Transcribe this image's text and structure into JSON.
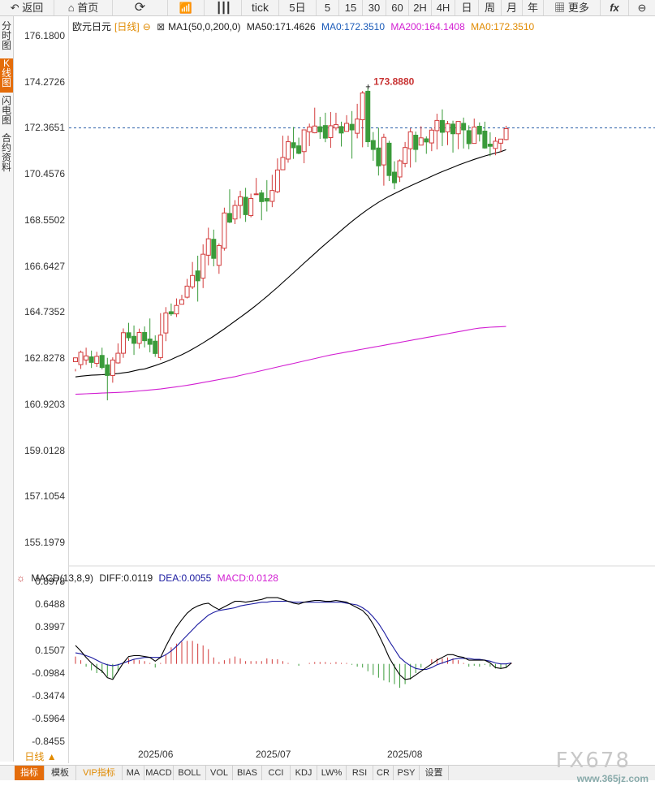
{
  "toolbar": {
    "back": "返回",
    "home": "首页",
    "tick": "tick",
    "periods": [
      "5日",
      "5",
      "15",
      "30",
      "60",
      "2H",
      "4H",
      "日",
      "周",
      "月",
      "年"
    ],
    "more": "更多"
  },
  "left_tabs": [
    {
      "label": "分时图",
      "active": false
    },
    {
      "label": "K线图",
      "active": true
    },
    {
      "label": "闪电图",
      "active": false
    },
    {
      "label": "合约资料",
      "active": false
    }
  ],
  "main_legend": {
    "symbol": "欧元日元",
    "period": "[日线]",
    "ma1": "MA1(50,0,200,0)",
    "ma50": "MA50:171.4626",
    "ma0": "MA0:172.3510",
    "ma200": "MA200:164.1408",
    "ma0b": "MA0:172.3510"
  },
  "current_price": "172.3651",
  "high_label": "173.8880",
  "y_labels_main": [
    "176.1800",
    "174.2726",
    "172.3651",
    "170.4576",
    "168.5502",
    "166.6427",
    "164.7352",
    "162.8278",
    "160.9203",
    "159.0128",
    "157.1054",
    "155.1979"
  ],
  "macd_legend": {
    "title": "MACD(13,8,9)",
    "diff": "DIFF:0.0119",
    "dea": "DEA:0.0055",
    "macd": "MACD:0.0128"
  },
  "y_labels_macd": [
    "0.8978",
    "0.6488",
    "0.3997",
    "0.1507",
    "-0.0984",
    "-0.3474",
    "-0.5964",
    "-0.8455"
  ],
  "x_labels": [
    "2025/06",
    "2025/07",
    "2025/08"
  ],
  "period_button": "日线 ▲",
  "bottom_tabs": [
    "指标",
    "模板",
    "VIP指标",
    "MA",
    "MACD",
    "BOLL",
    "VOL",
    "BIAS",
    "CCI",
    "KDJ",
    "LW%",
    "RSI",
    "CR",
    "PSY",
    "设置"
  ],
  "watermark": "FX678",
  "watermark_site": "www.365jz.com",
  "colors": {
    "up": "#d23a3a",
    "down": "#3a9b3a",
    "ma50": "#000000",
    "ma200": "#d21ed2",
    "dea": "#1a1aa0",
    "diff": "#000000",
    "current": "#2a5fa8"
  },
  "chart_data": {
    "type": "candlestick",
    "title": "欧元日元 [日线]",
    "ylim": [
      155.1979,
      176.18
    ],
    "x_ticks": [
      "2025/06",
      "2025/07",
      "2025/08"
    ],
    "candles": [
      [
        162.68,
        162.84,
        162.38,
        162.28
      ],
      [
        162.56,
        163.07,
        163.14,
        162.38
      ],
      [
        162.75,
        162.92,
        163.26,
        162.55
      ],
      [
        162.88,
        162.65,
        163.14,
        162.42
      ],
      [
        162.61,
        162.9,
        163.09,
        162.46
      ],
      [
        162.94,
        162.44,
        163.26,
        162.36
      ],
      [
        162.55,
        162.11,
        162.84,
        161.08
      ],
      [
        162.11,
        162.75,
        162.86,
        161.81
      ],
      [
        162.63,
        163.03,
        163.44,
        162.6
      ],
      [
        163.03,
        163.88,
        164.06,
        162.84
      ],
      [
        163.88,
        163.67,
        164.29,
        163.54
      ],
      [
        163.73,
        163.44,
        164.18,
        162.96
      ],
      [
        163.44,
        163.89,
        164.05,
        163.22
      ],
      [
        163.89,
        163.55,
        164.14,
        163.27
      ],
      [
        163.62,
        163.4,
        164.47,
        163.07
      ],
      [
        163.53,
        163.02,
        163.77,
        162.88
      ],
      [
        162.85,
        163.78,
        164.69,
        162.75
      ],
      [
        163.87,
        164.7,
        164.94,
        163.53
      ],
      [
        164.75,
        164.66,
        165.09,
        164.58
      ],
      [
        164.66,
        165.01,
        165.3,
        164.53
      ],
      [
        165.06,
        165.25,
        165.45,
        165.05
      ],
      [
        165.35,
        165.81,
        166.11,
        165.3
      ],
      [
        165.78,
        166.25,
        166.81,
        165.69
      ],
      [
        166.44,
        166.03,
        167.07,
        165.17
      ],
      [
        166.14,
        167.13,
        167.54,
        165.73
      ],
      [
        167.09,
        167.77,
        168.23,
        166.67
      ],
      [
        167.75,
        166.96,
        168.15,
        166.63
      ],
      [
        166.67,
        167.49,
        167.58,
        166.32
      ],
      [
        167.38,
        168.84,
        169.06,
        167.28
      ],
      [
        168.82,
        168.46,
        169.82,
        168.42
      ],
      [
        168.59,
        169.15,
        169.37,
        168.38
      ],
      [
        169.15,
        169.51,
        169.76,
        168.61
      ],
      [
        169.49,
        168.77,
        169.88,
        168.47
      ],
      [
        168.73,
        169.44,
        169.64,
        168.66
      ],
      [
        169.6,
        169.63,
        170.29,
        169.61
      ],
      [
        169.67,
        169.31,
        169.79,
        168.54
      ],
      [
        169.44,
        169.33,
        170.2,
        168.9
      ],
      [
        169.32,
        169.77,
        170.42,
        169.08
      ],
      [
        169.72,
        170.62,
        171.1,
        169.66
      ],
      [
        170.63,
        171.14,
        172.04,
        170.66
      ],
      [
        171.07,
        171.79,
        172.04,
        170.92
      ],
      [
        171.75,
        171.54,
        172.4,
        171.08
      ],
      [
        171.62,
        171.31,
        171.96,
        171.27
      ],
      [
        171.38,
        172.28,
        172.29,
        170.9
      ],
      [
        172.2,
        172.4,
        172.54,
        171.61
      ],
      [
        172.16,
        172.44,
        173.2,
        172.14
      ],
      [
        172.41,
        172.2,
        172.82,
        171.91
      ],
      [
        172.46,
        171.94,
        172.99,
        171.77
      ],
      [
        171.96,
        172.45,
        173.02,
        171.54
      ],
      [
        172.36,
        172.5,
        172.99,
        172.26
      ],
      [
        172.42,
        172.15,
        172.62,
        171.59
      ],
      [
        172.22,
        172.55,
        172.89,
        172.31
      ],
      [
        172.51,
        172.28,
        173.06,
        171.09
      ],
      [
        172.14,
        172.73,
        173.36,
        171.93
      ],
      [
        172.7,
        173.81,
        173.89,
        171.56
      ],
      [
        173.88,
        171.79,
        174.04,
        171.57
      ],
      [
        171.84,
        171.47,
        172.19,
        171.0
      ],
      [
        171.53,
        170.79,
        172.37,
        170.39
      ],
      [
        170.83,
        171.97,
        172.12,
        169.97
      ],
      [
        171.73,
        170.39,
        171.83,
        170.16
      ],
      [
        170.53,
        170.09,
        170.98,
        169.82
      ],
      [
        170.33,
        171.0,
        171.06,
        170.12
      ],
      [
        170.89,
        171.55,
        171.78,
        170.73
      ],
      [
        171.5,
        172.2,
        172.35,
        170.72
      ],
      [
        172.06,
        171.47,
        172.21,
        170.94
      ],
      [
        171.65,
        171.95,
        172.43,
        171.65
      ],
      [
        171.91,
        171.78,
        172.01,
        171.29
      ],
      [
        171.74,
        172.27,
        172.35,
        171.4
      ],
      [
        172.25,
        172.67,
        172.95,
        171.47
      ],
      [
        172.67,
        172.18,
        173.13,
        171.61
      ],
      [
        172.2,
        172.53,
        172.65,
        171.65
      ],
      [
        172.52,
        172.12,
        172.66,
        171.34
      ],
      [
        172.12,
        172.63,
        172.62,
        171.48
      ],
      [
        172.55,
        172.28,
        172.79,
        171.51
      ],
      [
        172.25,
        171.71,
        172.47,
        171.48
      ],
      [
        171.72,
        172.4,
        172.75,
        172.24
      ],
      [
        172.43,
        172.11,
        172.59,
        171.8
      ],
      [
        172.23,
        171.53,
        172.62,
        171.5
      ],
      [
        171.69,
        171.6,
        172.18,
        171.19
      ],
      [
        171.51,
        171.81,
        171.98,
        171.23
      ],
      [
        171.73,
        171.9,
        171.85,
        171.35
      ],
      [
        171.88,
        172.33,
        172.45,
        171.85
      ]
    ],
    "ma50": [
      162.05,
      162.08,
      162.1,
      162.12,
      162.13,
      162.14,
      162.16,
      162.17,
      162.19,
      162.22,
      162.25,
      162.3,
      162.35,
      162.38,
      162.45,
      162.52,
      162.6,
      162.68,
      162.77,
      162.87,
      162.97,
      163.08,
      163.2,
      163.33,
      163.46,
      163.6,
      163.74,
      163.89,
      164.04,
      164.2,
      164.36,
      164.52,
      164.68,
      164.85,
      165.02,
      165.2,
      165.38,
      165.57,
      165.76,
      165.96,
      166.16,
      166.36,
      166.56,
      166.76,
      166.96,
      167.16,
      167.36,
      167.55,
      167.74,
      167.93,
      168.12,
      168.31,
      168.49,
      168.66,
      168.83,
      168.99,
      169.14,
      169.28,
      169.41,
      169.53,
      169.64,
      169.75,
      169.86,
      169.96,
      170.06,
      170.16,
      170.26,
      170.36,
      170.46,
      170.55,
      170.64,
      170.73,
      170.82,
      170.9,
      170.98,
      171.06,
      171.13,
      171.2,
      171.26,
      171.32,
      171.38,
      171.46
    ],
    "ma200": [
      161.33,
      161.34,
      161.35,
      161.36,
      161.37,
      161.38,
      161.39,
      161.4,
      161.41,
      161.42,
      161.43,
      161.45,
      161.47,
      161.49,
      161.51,
      161.53,
      161.55,
      161.58,
      161.61,
      161.64,
      161.67,
      161.7,
      161.74,
      161.78,
      161.82,
      161.86,
      161.9,
      161.94,
      161.98,
      162.02,
      162.06,
      162.11,
      162.16,
      162.21,
      162.26,
      162.31,
      162.36,
      162.41,
      162.46,
      162.51,
      162.56,
      162.61,
      162.66,
      162.71,
      162.76,
      162.81,
      162.86,
      162.91,
      162.96,
      163.0,
      163.04,
      163.08,
      163.12,
      163.16,
      163.2,
      163.24,
      163.28,
      163.32,
      163.36,
      163.4,
      163.44,
      163.48,
      163.52,
      163.56,
      163.6,
      163.64,
      163.68,
      163.72,
      163.76,
      163.8,
      163.84,
      163.88,
      163.92,
      163.96,
      164.0,
      164.04,
      164.07,
      164.09,
      164.11,
      164.12,
      164.13,
      164.14
    ],
    "macd": {
      "ylim": [
        -0.85,
        0.95
      ],
      "diff": [
        0.2,
        0.14,
        0.07,
        0.01,
        -0.04,
        -0.08,
        -0.15,
        -0.17,
        -0.08,
        0.01,
        0.08,
        0.09,
        0.09,
        0.08,
        0.07,
        0.03,
        0.07,
        0.19,
        0.3,
        0.4,
        0.48,
        0.55,
        0.6,
        0.63,
        0.65,
        0.66,
        0.62,
        0.59,
        0.62,
        0.65,
        0.68,
        0.68,
        0.67,
        0.68,
        0.69,
        0.7,
        0.72,
        0.72,
        0.72,
        0.7,
        0.68,
        0.66,
        0.65,
        0.67,
        0.68,
        0.69,
        0.69,
        0.68,
        0.68,
        0.69,
        0.68,
        0.67,
        0.64,
        0.61,
        0.58,
        0.52,
        0.43,
        0.32,
        0.2,
        0.07,
        -0.03,
        -0.12,
        -0.17,
        -0.16,
        -0.12,
        -0.08,
        -0.04,
        0.0,
        0.04,
        0.07,
        0.1,
        0.1,
        0.08,
        0.07,
        0.04,
        0.04,
        0.04,
        0.04,
        0.01,
        -0.04,
        -0.05,
        -0.04,
        0.01
      ],
      "dea": [
        0.12,
        0.11,
        0.09,
        0.07,
        0.04,
        0.01,
        -0.01,
        -0.02,
        -0.01,
        0.01,
        0.03,
        0.05,
        0.06,
        0.07,
        0.07,
        0.07,
        0.07,
        0.1,
        0.14,
        0.19,
        0.25,
        0.31,
        0.37,
        0.43,
        0.48,
        0.53,
        0.56,
        0.58,
        0.59,
        0.6,
        0.61,
        0.63,
        0.64,
        0.65,
        0.66,
        0.67,
        0.67,
        0.68,
        0.68,
        0.68,
        0.68,
        0.67,
        0.67,
        0.67,
        0.67,
        0.67,
        0.67,
        0.67,
        0.67,
        0.67,
        0.67,
        0.66,
        0.65,
        0.64,
        0.61,
        0.57,
        0.51,
        0.44,
        0.35,
        0.25,
        0.16,
        0.07,
        0.02,
        -0.02,
        -0.05,
        -0.06,
        -0.06,
        -0.04,
        -0.01,
        0.01,
        0.03,
        0.05,
        0.06,
        0.06,
        0.06,
        0.05,
        0.05,
        0.04,
        0.03,
        0.01,
        0.0,
        0.0,
        0.01
      ],
      "hist": [
        0.08,
        0.04,
        -0.03,
        -0.07,
        -0.1,
        -0.1,
        -0.14,
        -0.16,
        -0.08,
        0.01,
        0.06,
        0.05,
        0.04,
        0.03,
        0.01,
        -0.04,
        0.01,
        0.1,
        0.18,
        0.22,
        0.24,
        0.25,
        0.25,
        0.22,
        0.2,
        0.16,
        0.07,
        0.02,
        0.04,
        0.06,
        0.08,
        0.06,
        0.03,
        0.03,
        0.03,
        0.03,
        0.06,
        0.05,
        0.05,
        0.03,
        0.01,
        0.0,
        -0.02,
        0.0,
        0.01,
        0.02,
        0.02,
        0.02,
        0.01,
        0.02,
        0.01,
        0.01,
        -0.01,
        -0.03,
        -0.04,
        -0.08,
        -0.12,
        -0.15,
        -0.18,
        -0.2,
        -0.22,
        -0.26,
        -0.22,
        -0.17,
        -0.1,
        -0.04,
        0.0,
        0.05,
        0.06,
        0.06,
        0.07,
        0.06,
        0.04,
        0.01,
        -0.03,
        -0.02,
        -0.03,
        -0.01,
        -0.03,
        -0.05,
        -0.05,
        -0.04,
        0.01
      ]
    }
  }
}
